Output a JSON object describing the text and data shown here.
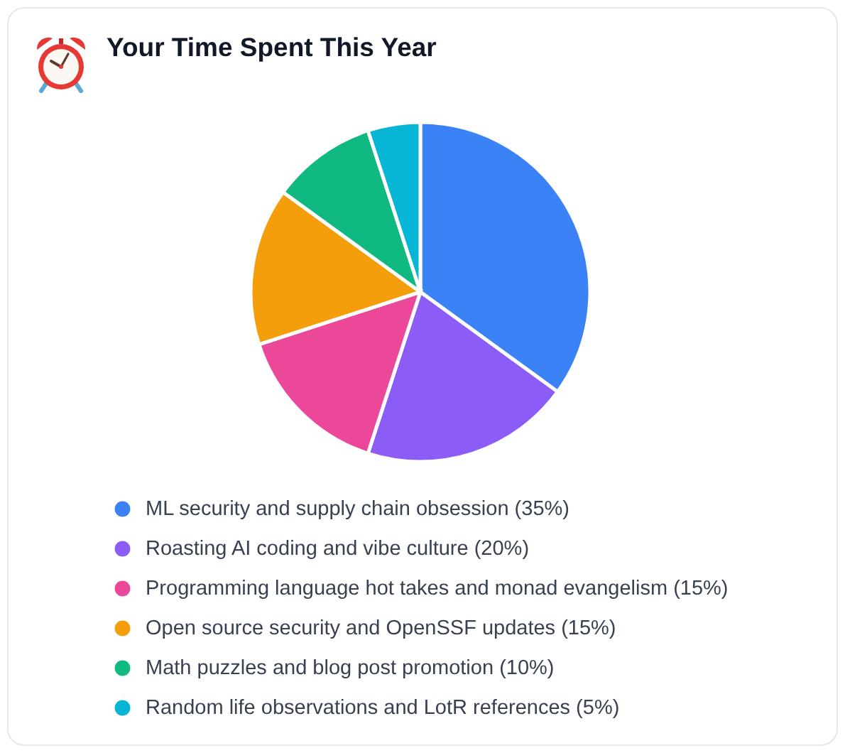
{
  "chart_data": {
    "type": "pie",
    "title": "Your Time Spent This Year",
    "categories": [
      "ML security and supply chain obsession (35%)",
      "Roasting AI coding and vibe culture (20%)",
      "Programming language hot takes and monad evangelism (15%)",
      "Open source security and OpenSSF updates (15%)",
      "Math puzzles and blog post promotion (10%)",
      "Random life observations and LotR references (5%)"
    ],
    "values": [
      35,
      20,
      15,
      15,
      10,
      5
    ],
    "colors": [
      "#3b82f6",
      "#8b5cf6",
      "#ec4899",
      "#f59e0b",
      "#10b981",
      "#06b6d4"
    ],
    "legend": "bottom"
  }
}
